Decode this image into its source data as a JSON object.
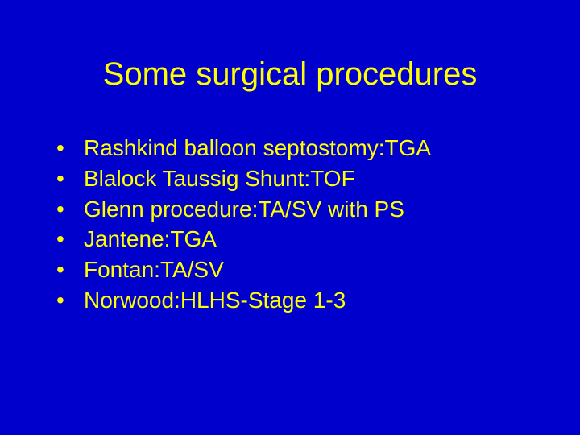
{
  "slide": {
    "background_color": "#0000cc",
    "text_color": "#ffff00",
    "title": "Some surgical procedures",
    "title_fontsize": 40,
    "bullet_fontsize": 28,
    "bullets": [
      "Rashkind balloon septostomy:TGA",
      "Blalock Taussig Shunt:TOF",
      "Glenn procedure:TA/SV with PS",
      "Jantene:TGA",
      "Fontan:TA/SV",
      "Norwood:HLHS-Stage 1-3"
    ]
  }
}
